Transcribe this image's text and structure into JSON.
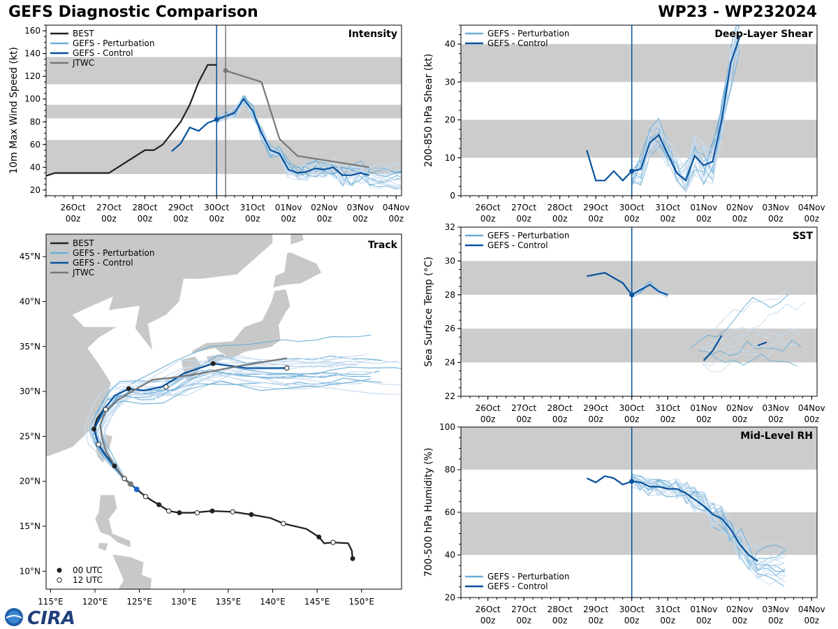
{
  "header": {
    "title": "GEFS Diagnostic Comparison",
    "storm": "WP23 - WP232024"
  },
  "logo": {
    "text": "CIRA"
  },
  "colors": {
    "best": "#222222",
    "perturbation": "#6baed6",
    "perturbation_faint": "#c6dbef",
    "control": "#08519c",
    "jtwc": "#777777",
    "band": "#cccccc"
  },
  "time_axis": {
    "dates": [
      "26Oct",
      "27Oct",
      "28Oct",
      "29Oct",
      "30Oct",
      "31Oct",
      "01Nov",
      "02Nov",
      "03Nov",
      "04Nov"
    ],
    "hours": [
      "00z",
      "00z",
      "00z",
      "00z",
      "00z",
      "00z",
      "00z",
      "00z",
      "00z",
      "00z"
    ]
  },
  "legend": {
    "best": "BEST",
    "perturbation": "GEFS - Perturbation",
    "control": "GEFS - Control",
    "jtwc": "JTWC",
    "utc00": "00 UTC",
    "utc12": "12 UTC"
  },
  "chart_data": [
    {
      "id": "intensity",
      "type": "line",
      "title": "Intensity",
      "ylabel": "10m Max Wind Speed (kt)",
      "ylim": [
        15,
        165
      ],
      "yticks": [
        20,
        40,
        60,
        80,
        100,
        120,
        140,
        160
      ],
      "xlim_days": [
        -4.75,
        5.15
      ],
      "bands": [
        [
          34,
          64
        ],
        [
          83,
          95
        ],
        [
          113,
          137
        ]
      ],
      "init_time_day": 0,
      "jtwc_time_day": 0.25,
      "series": [
        {
          "name": "BEST",
          "x": [
            -5,
            -4.5,
            -4,
            -3.5,
            -3,
            -2.5,
            -2,
            -1.75,
            -1.5,
            -1,
            -0.75,
            -0.5,
            -0.25,
            0
          ],
          "y": [
            30,
            35,
            35,
            35,
            35,
            45,
            55,
            55,
            60,
            80,
            95,
            115,
            130,
            130
          ]
        },
        {
          "name": "GEFS - Control",
          "x": [
            -1.25,
            -1,
            -0.75,
            -0.5,
            -0.25,
            0,
            0.25,
            0.5,
            0.75,
            1,
            1.25,
            1.5,
            1.75,
            2,
            2.25,
            2.5,
            2.75,
            3,
            3.25,
            3.5,
            3.75,
            4,
            4.25
          ],
          "y": [
            54,
            61,
            75,
            72,
            79,
            82,
            85,
            88,
            100,
            90,
            70,
            55,
            52,
            38,
            35,
            36,
            39,
            38,
            40,
            33,
            33,
            35,
            33
          ]
        },
        {
          "name": "JTWC",
          "x": [
            0.25,
            0.75,
            1.25,
            1.75,
            2.25,
            4.25
          ],
          "y": [
            125,
            120,
            115,
            65,
            50,
            40
          ]
        }
      ]
    },
    {
      "id": "shear",
      "type": "line",
      "title": "Deep-Layer Shear",
      "ylabel": "200-850 hPa Shear (kt)",
      "ylim": [
        0,
        45
      ],
      "yticks": [
        0,
        10,
        20,
        30,
        40
      ],
      "xlim_days": [
        -4.75,
        5.15
      ],
      "bands": [
        [
          10,
          20
        ],
        [
          30,
          40
        ]
      ],
      "init_time_day": 0,
      "series": [
        {
          "name": "GEFS - Control",
          "x": [
            -1.25,
            -1,
            -0.75,
            -0.5,
            -0.25,
            0,
            0.25,
            0.5,
            0.75,
            1,
            1.25,
            1.5,
            1.75,
            2,
            2.25,
            2.5,
            2.75,
            3
          ],
          "y": [
            12,
            4,
            4,
            6.5,
            4,
            6.5,
            7,
            14,
            16,
            11,
            6,
            4,
            10.5,
            8,
            9,
            20,
            35,
            42
          ]
        }
      ]
    },
    {
      "id": "sst",
      "type": "line",
      "title": "SST",
      "ylabel": "Sea Surface Temp (°C)",
      "ylim": [
        22,
        32
      ],
      "yticks": [
        22,
        24,
        26,
        28,
        30,
        32
      ],
      "xlim_days": [
        -4.75,
        5.15
      ],
      "bands": [
        [
          24,
          26
        ],
        [
          28,
          30
        ]
      ],
      "init_time_day": 0,
      "series": [
        {
          "name": "GEFS - Control",
          "x": [
            -1.25,
            -0.75,
            -0.5,
            -0.25,
            0,
            0.25,
            0.5,
            0.75,
            1
          ],
          "y": [
            29.1,
            29.3,
            29.0,
            28.7,
            28.0,
            28.3,
            28.6,
            28.2,
            28.0
          ]
        },
        {
          "name": "GEFS - Control (late)",
          "x": [
            2,
            2.25,
            2.5
          ],
          "y": [
            24.1,
            24.7,
            25.6
          ]
        },
        {
          "name": "GEFS - Control (end)",
          "x": [
            3.5,
            3.75
          ],
          "y": [
            25.0,
            25.2
          ]
        }
      ]
    },
    {
      "id": "rh",
      "type": "line",
      "title": "Mid-Level RH",
      "ylabel": "700-500 hPa Humidity (%)",
      "ylim": [
        20,
        100
      ],
      "yticks": [
        20,
        40,
        60,
        80,
        100
      ],
      "xlim_days": [
        -4.75,
        5.15
      ],
      "bands": [
        [
          40,
          60
        ],
        [
          80,
          100
        ]
      ],
      "init_time_day": 0,
      "series": [
        {
          "name": "GEFS - Control",
          "x": [
            -1.25,
            -1,
            -0.75,
            -0.5,
            -0.25,
            0,
            0.25,
            0.5,
            0.75,
            1,
            1.25,
            1.5,
            1.75,
            2,
            2.25,
            2.5,
            2.75,
            3,
            3.25,
            3.5
          ],
          "y": [
            76,
            74,
            77,
            76,
            73,
            74.5,
            74,
            72,
            72,
            71,
            71,
            69,
            66,
            63,
            59,
            57,
            52,
            45,
            40,
            37
          ]
        }
      ]
    },
    {
      "id": "track",
      "type": "line",
      "title": "Track",
      "xlim_lon": [
        114.5,
        154.5
      ],
      "ylim_lat": [
        8,
        47.5
      ],
      "xticks": [
        "115°E",
        "120°E",
        "125°E",
        "130°E",
        "135°E",
        "140°E",
        "145°E",
        "150°E"
      ],
      "yticks": [
        "10°N",
        "15°N",
        "20°N",
        "25°N",
        "30°N",
        "35°N",
        "40°N",
        "45°N"
      ],
      "series": [
        {
          "name": "BEST",
          "lon": [
            149,
            148.9,
            148.5,
            146.8,
            145.8,
            145.2,
            143.8,
            141.2,
            139.8,
            137.6,
            135.5,
            133.2,
            130.9,
            129.5,
            128.3,
            127.2,
            126.5,
            125.7,
            124.7,
            124.0,
            123.3,
            122.2,
            121.2,
            120.4,
            119.9,
            120.2,
            121.0
          ],
          "lat": [
            11.4,
            12.3,
            13.1,
            13.2,
            13.1,
            13.8,
            14.7,
            15.3,
            15.9,
            16.3,
            16.6,
            16.7,
            16.5,
            16.5,
            16.7,
            17.4,
            17.8,
            18.3,
            19.1,
            19.7,
            20.3,
            21.7,
            22.9,
            24.1,
            25.8,
            26.9,
            28.0
          ]
        },
        {
          "name": "GEFS - Control",
          "lon": [
            124.7,
            124.0,
            123.3,
            122.2,
            121.2,
            120.4,
            119.9,
            121.0,
            122.2,
            123.8,
            125.5,
            127.5,
            130.0,
            133.3,
            137.0,
            141.6
          ],
          "lat": [
            19.1,
            19.7,
            20.3,
            21.7,
            22.9,
            24.1,
            25.8,
            28.0,
            29.5,
            30.3,
            30.1,
            30.5,
            32.0,
            33.1,
            32.6,
            32.6
          ]
        },
        {
          "name": "JTWC",
          "lon": [
            124.0,
            123.3,
            122.2,
            121.3,
            120.8,
            120.6,
            121.2,
            122.5,
            124.5,
            126.5,
            128.5,
            132.0,
            136.0,
            141.6
          ],
          "lat": [
            19.7,
            20.3,
            21.8,
            23.2,
            24.8,
            26.3,
            27.8,
            29.0,
            30.2,
            31.3,
            31.5,
            32.0,
            32.8,
            33.7
          ]
        }
      ],
      "markers_00utc": [
        [
          149.0,
          11.4
        ],
        [
          145.2,
          13.8
        ],
        [
          137.6,
          16.3
        ],
        [
          133.2,
          16.7
        ],
        [
          129.5,
          16.5
        ],
        [
          127.2,
          17.4
        ],
        [
          122.2,
          21.7
        ],
        [
          119.9,
          25.8
        ],
        [
          123.8,
          30.3
        ],
        [
          133.3,
          33.1
        ]
      ],
      "markers_12utc": [
        [
          146.8,
          13.2
        ],
        [
          141.2,
          15.3
        ],
        [
          135.5,
          16.6
        ],
        [
          131.5,
          16.5
        ],
        [
          128.3,
          16.7
        ],
        [
          125.7,
          18.3
        ],
        [
          123.3,
          20.3
        ],
        [
          120.4,
          24.1
        ],
        [
          121.2,
          28.0
        ],
        [
          128.0,
          30.5
        ],
        [
          141.6,
          32.6
        ]
      ]
    }
  ]
}
